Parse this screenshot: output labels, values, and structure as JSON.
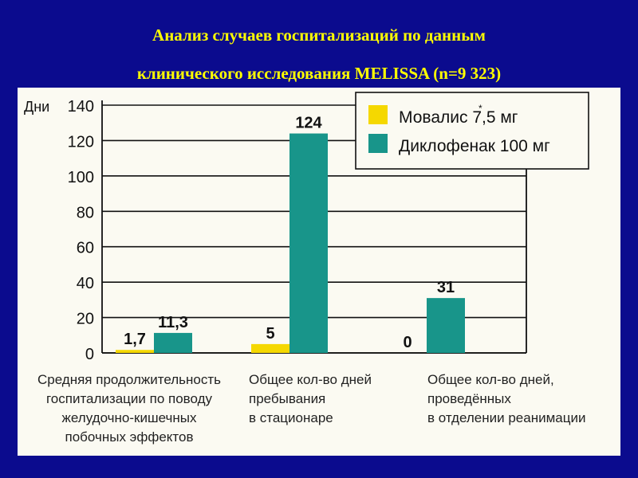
{
  "slide": {
    "title_line1": "Анализ случаев госпитализаций по данным",
    "title_line2": "клинического исследования MELISSA (n=9 323)"
  },
  "colors": {
    "background": "#0b0b8e",
    "title": "#ffff00",
    "series_movalis": "#f5d800",
    "series_diclofenac": "#18958a"
  },
  "chart_data": {
    "type": "bar",
    "ylabel": "Дни",
    "ylim": [
      0,
      140
    ],
    "yticks": [
      0,
      20,
      40,
      60,
      80,
      100,
      120,
      140
    ],
    "grid": true,
    "legend_position": "top-right",
    "categories": [
      [
        "Средняя продолжительность",
        "госпитализации по поводу",
        "желудочно-кишечных",
        "побочных эффектов"
      ],
      [
        "Общее кол-во дней",
        "пребывания",
        "в стационаре"
      ],
      [
        "Общее кол-во дней,",
        "проведённых",
        "в отделении реанимации"
      ]
    ],
    "series": [
      {
        "name": "Мовалис 7,5 мг",
        "legend_sup": "*",
        "values": [
          1.7,
          5,
          0
        ],
        "labels": [
          "1,7",
          "5",
          "0"
        ]
      },
      {
        "name": "Диклофенак 100 мг",
        "values": [
          11.3,
          124,
          31
        ],
        "labels": [
          "11,3",
          "124",
          "31"
        ]
      }
    ]
  }
}
